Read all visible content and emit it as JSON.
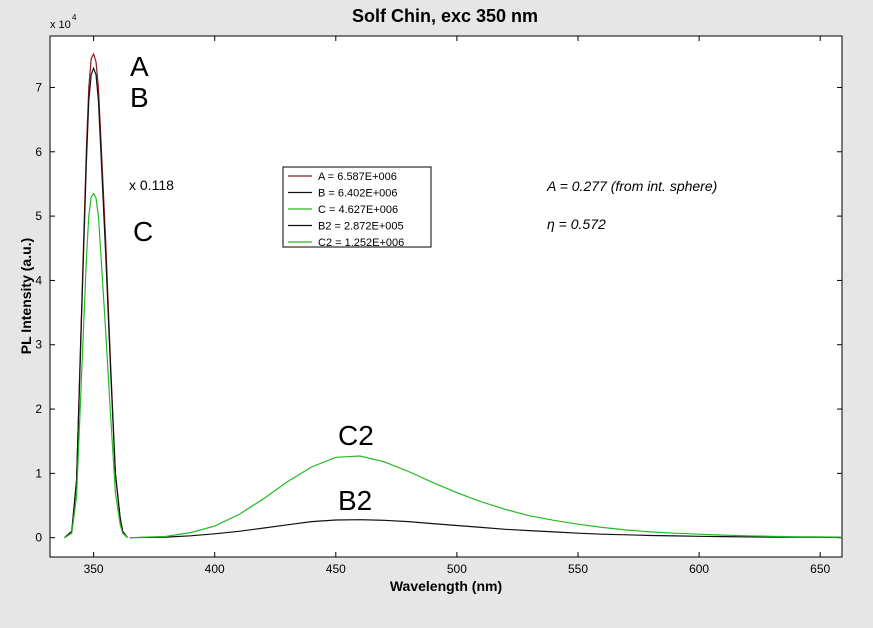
{
  "chart_data": {
    "type": "line",
    "title": "Solf Chin, exc 350 nm",
    "xlabel": "Wavelength (nm)",
    "ylabel": "PL Intensity (a.u.)",
    "y_multiplier_base": "x 10",
    "y_multiplier_exp": "4",
    "xlim": [
      332,
      659
    ],
    "ylim": [
      -0.3,
      7.8
    ],
    "xticks": [
      350,
      400,
      450,
      500,
      550,
      600,
      650
    ],
    "yticks": [
      0,
      1,
      2,
      3,
      4,
      5,
      6,
      7
    ],
    "grid": false,
    "legend_position": "center-left",
    "series": [
      {
        "name": "A  = 6.587E+006",
        "color": "#8b1a1a",
        "x": [
          338,
          341,
          343,
          345,
          347,
          348,
          349,
          350,
          351,
          352,
          353,
          355,
          357,
          359,
          361,
          362,
          364
        ],
        "y": [
          0,
          0.1,
          0.9,
          3.5,
          6.0,
          7.0,
          7.45,
          7.52,
          7.4,
          7.0,
          6.2,
          4.6,
          2.7,
          1.0,
          0.3,
          0.1,
          0
        ]
      },
      {
        "name": "B  = 6.402E+006",
        "color": "#111111",
        "x": [
          338,
          341,
          343,
          345,
          347,
          348,
          349,
          350,
          351,
          352,
          353,
          355,
          357,
          359,
          361,
          362,
          364
        ],
        "y": [
          0,
          0.1,
          0.9,
          3.4,
          5.8,
          6.8,
          7.2,
          7.3,
          7.2,
          6.8,
          6.0,
          4.4,
          2.6,
          1.0,
          0.3,
          0.1,
          0
        ]
      },
      {
        "name": "C  = 4.627E+006",
        "color": "#22bb22",
        "x": [
          338,
          341,
          343,
          345,
          347,
          348,
          349,
          350,
          351,
          352,
          353,
          355,
          357,
          359,
          361,
          362,
          364
        ],
        "y": [
          0,
          0.07,
          0.65,
          2.5,
          4.3,
          5.0,
          5.3,
          5.35,
          5.28,
          5.0,
          4.4,
          3.2,
          1.9,
          0.7,
          0.2,
          0.07,
          0
        ]
      },
      {
        "name": "B2 = 2.872E+005",
        "color": "#111111",
        "x": [
          365,
          380,
          390,
          400,
          410,
          420,
          430,
          440,
          450,
          460,
          470,
          480,
          490,
          500,
          510,
          520,
          530,
          540,
          550,
          560,
          570,
          580,
          590,
          600,
          610,
          620,
          630,
          640,
          650,
          659
        ],
        "y": [
          0,
          0.01,
          0.03,
          0.06,
          0.1,
          0.15,
          0.2,
          0.25,
          0.275,
          0.28,
          0.27,
          0.25,
          0.22,
          0.19,
          0.16,
          0.13,
          0.11,
          0.09,
          0.07,
          0.055,
          0.045,
          0.035,
          0.028,
          0.022,
          0.017,
          0.013,
          0.01,
          0.008,
          0.006,
          0.005
        ]
      },
      {
        "name": "C2 = 1.252E+006",
        "color": "#22bb22",
        "x": [
          365,
          380,
          390,
          400,
          410,
          420,
          430,
          440,
          450,
          460,
          470,
          480,
          490,
          500,
          510,
          520,
          530,
          540,
          550,
          560,
          570,
          580,
          590,
          600,
          610,
          620,
          630,
          640,
          650,
          659
        ],
        "y": [
          0,
          0.02,
          0.08,
          0.18,
          0.36,
          0.6,
          0.87,
          1.1,
          1.25,
          1.27,
          1.18,
          1.03,
          0.86,
          0.7,
          0.56,
          0.44,
          0.34,
          0.27,
          0.21,
          0.16,
          0.12,
          0.09,
          0.07,
          0.055,
          0.04,
          0.03,
          0.022,
          0.016,
          0.012,
          0.01
        ]
      }
    ],
    "annotations": {
      "label_a": "A",
      "label_b": "B",
      "label_c": "C",
      "label_c2": "C2",
      "label_b2": "B2",
      "scale_note": "x 0.118",
      "absorption_note": "A = 0.277 (from int. sphere)",
      "eta_symbol": "η",
      "eta_value": " = 0.572"
    }
  }
}
